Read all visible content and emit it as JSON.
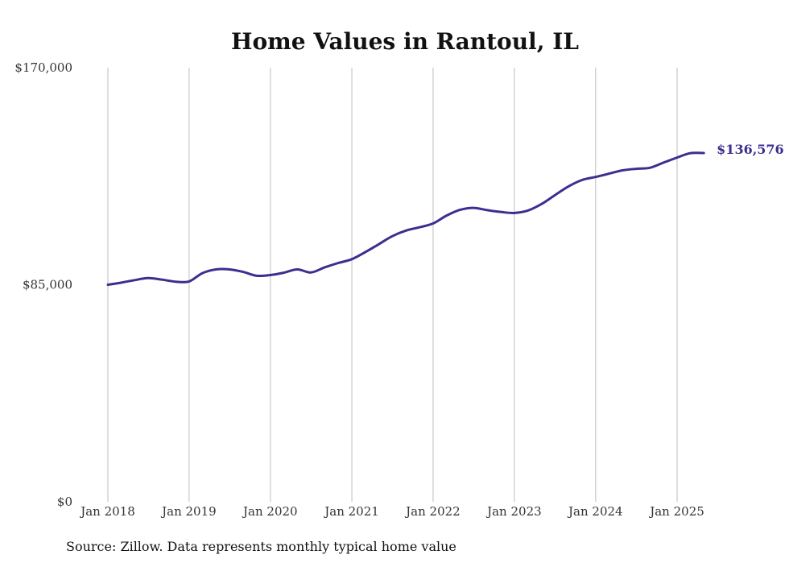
{
  "chart_data": {
    "type": "line",
    "title": "Home Values in Rantoul, IL",
    "xlabel": "",
    "ylabel": "",
    "x_ticks": [
      "Jan 2018",
      "Jan 2019",
      "Jan 2020",
      "Jan 2021",
      "Jan 2022",
      "Jan 2023",
      "Jan 2024",
      "Jan 2025"
    ],
    "y_ticks": [
      "$0",
      "$85,000",
      "$170,000"
    ],
    "y_tick_values": [
      0,
      85000,
      170000
    ],
    "ylim": [
      0,
      170000
    ],
    "grid": "vertical",
    "line_color": "#3b2f8f",
    "end_label": "$136,576",
    "series": [
      {
        "x": [
          "2018-01",
          "2018-03",
          "2018-05",
          "2018-07",
          "2018-09",
          "2018-11",
          "2019-01",
          "2019-03",
          "2019-05",
          "2019-07",
          "2019-09",
          "2019-11",
          "2020-01",
          "2020-03",
          "2020-05",
          "2020-07",
          "2020-09",
          "2020-11",
          "2021-01",
          "2021-03",
          "2021-05",
          "2021-07",
          "2021-09",
          "2021-11",
          "2022-01",
          "2022-03",
          "2022-05",
          "2022-07",
          "2022-09",
          "2022-11",
          "2023-01",
          "2023-03",
          "2023-05",
          "2023-07",
          "2023-09",
          "2023-11",
          "2024-01",
          "2024-03",
          "2024-05",
          "2024-07",
          "2024-09",
          "2024-11",
          "2025-01",
          "2025-03",
          "2025-05"
        ],
        "values": [
          85000,
          85800,
          86800,
          87600,
          87000,
          86200,
          86300,
          89500,
          91000,
          91000,
          90000,
          88500,
          88800,
          89700,
          91000,
          89800,
          91800,
          93500,
          95000,
          97700,
          100800,
          104000,
          106200,
          107500,
          109000,
          112000,
          114300,
          115100,
          114200,
          113500,
          113100,
          114000,
          116500,
          120000,
          123500,
          126000,
          127200,
          128500,
          129800,
          130400,
          130800,
          132800,
          134800,
          136500,
          136576
        ]
      }
    ]
  },
  "source_note": "Source: Zillow. Data represents monthly typical home value"
}
